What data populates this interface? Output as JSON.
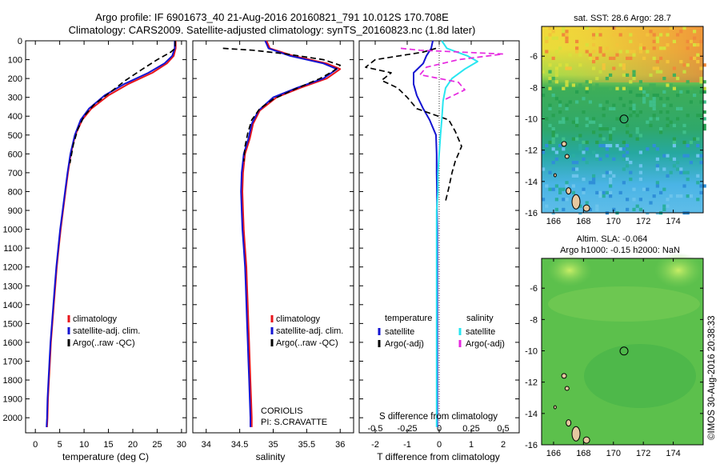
{
  "header": {
    "line1": "Argo profile: IF 6901673_40 21-Aug-2016 20160821_791 10.012S 170.708E",
    "line2": "Climatology: CARS2009. Satellite-adjusted climatology: synTS_20160823.nc (1.8d later)"
  },
  "footer": {
    "stamp": "©IMOS 30-Aug-2016 20:38:33"
  },
  "colors": {
    "climatology": "#e8151b",
    "satellite": "#1414d2",
    "argo": "#000000",
    "sal_satellite": "#28e6f0",
    "sal_argo": "#e629e0"
  },
  "chart_data": [
    {
      "type": "line",
      "xlabel": "temperature (deg C)",
      "xlim": [
        -2,
        31
      ],
      "ylim": [
        2080,
        0
      ],
      "xticks": [
        0,
        5,
        10,
        15,
        20,
        25,
        30
      ],
      "yticks": [
        0,
        100,
        200,
        300,
        400,
        500,
        600,
        700,
        800,
        900,
        1000,
        1100,
        1200,
        1300,
        1400,
        1500,
        1600,
        1700,
        1800,
        1900,
        2000
      ],
      "legend": {
        "placement": "lower-left",
        "entries": [
          "climatology",
          "satellite-adj. clim.",
          "Argo(..raw -QC)"
        ]
      },
      "series": [
        {
          "name": "climatology",
          "color": "#e8151b",
          "dash": "solid",
          "points": [
            [
              28.8,
              0
            ],
            [
              28.8,
              40
            ],
            [
              28.4,
              80
            ],
            [
              27,
              120
            ],
            [
              24,
              170
            ],
            [
              19,
              230
            ],
            [
              15,
              290
            ],
            [
              11.5,
              360
            ],
            [
              9.6,
              420
            ],
            [
              8.2,
              500
            ],
            [
              7.3,
              600
            ],
            [
              6.7,
              700
            ],
            [
              6.2,
              800
            ],
            [
              5.7,
              900
            ],
            [
              5.2,
              1000
            ],
            [
              4.8,
              1100
            ],
            [
              4.4,
              1200
            ],
            [
              4.1,
              1300
            ],
            [
              3.8,
              1400
            ],
            [
              3.5,
              1500
            ],
            [
              3.2,
              1600
            ],
            [
              3.0,
              1700
            ],
            [
              2.8,
              1800
            ],
            [
              2.6,
              1900
            ],
            [
              2.5,
              2000
            ],
            [
              2.4,
              2050
            ]
          ]
        },
        {
          "name": "satellite-adj. clim.",
          "color": "#1414d2",
          "dash": "solid",
          "points": [
            [
              28.6,
              0
            ],
            [
              28.6,
              40
            ],
            [
              28.1,
              80
            ],
            [
              26.5,
              120
            ],
            [
              23.2,
              170
            ],
            [
              18.2,
              230
            ],
            [
              14.2,
              290
            ],
            [
              11,
              360
            ],
            [
              9.3,
              420
            ],
            [
              8.1,
              500
            ],
            [
              7.2,
              600
            ],
            [
              6.6,
              700
            ],
            [
              6.1,
              800
            ],
            [
              5.6,
              900
            ],
            [
              5.1,
              1000
            ],
            [
              4.7,
              1100
            ],
            [
              4.3,
              1200
            ],
            [
              4.0,
              1300
            ],
            [
              3.7,
              1400
            ],
            [
              3.4,
              1500
            ],
            [
              3.1,
              1600
            ],
            [
              2.9,
              1700
            ],
            [
              2.7,
              1800
            ],
            [
              2.5,
              1900
            ],
            [
              2.4,
              2000
            ],
            [
              2.3,
              2050
            ]
          ]
        },
        {
          "name": "Argo(..raw -QC)",
          "color": "#000000",
          "dash": "dash",
          "points": [
            [
              28.7,
              0
            ],
            [
              28.7,
              40
            ],
            [
              27.8,
              60
            ],
            [
              25,
              100
            ],
            [
              22,
              150
            ],
            [
              18.5,
              210
            ],
            [
              15,
              280
            ],
            [
              12,
              340
            ],
            [
              10,
              400
            ],
            [
              8.7,
              470
            ],
            [
              7.8,
              550
            ],
            [
              7.1,
              650
            ]
          ]
        }
      ]
    },
    {
      "type": "line",
      "xlabel": "salinity",
      "xlim": [
        33.8,
        36.2
      ],
      "ylim": [
        2080,
        0
      ],
      "xticks": [
        34,
        34.5,
        35,
        35.5,
        36
      ],
      "legend": {
        "placement": "lower-left",
        "entries": [
          "climatology",
          "satellite-adj. clim.",
          "Argo(..raw -QC)"
        ]
      },
      "annotation": {
        "line1": "CORIOLIS",
        "line2": "PI: S.CRAVATTE"
      },
      "series": [
        {
          "name": "climatology",
          "color": "#e8151b",
          "dash": "solid",
          "points": [
            [
              34.9,
              0
            ],
            [
              34.95,
              40
            ],
            [
              35.3,
              80
            ],
            [
              35.8,
              120
            ],
            [
              36.0,
              150
            ],
            [
              35.8,
              200
            ],
            [
              35.4,
              250
            ],
            [
              35.05,
              300
            ],
            [
              34.8,
              370
            ],
            [
              34.7,
              440
            ],
            [
              34.65,
              520
            ],
            [
              34.58,
              600
            ],
            [
              34.55,
              700
            ],
            [
              34.54,
              800
            ],
            [
              34.55,
              900
            ],
            [
              34.56,
              1000
            ],
            [
              34.58,
              1100
            ],
            [
              34.6,
              1200
            ],
            [
              34.61,
              1300
            ],
            [
              34.62,
              1400
            ],
            [
              34.63,
              1500
            ],
            [
              34.64,
              1600
            ],
            [
              34.65,
              1700
            ],
            [
              34.66,
              1800
            ],
            [
              34.67,
              1900
            ],
            [
              34.68,
              2000
            ],
            [
              34.68,
              2050
            ]
          ]
        },
        {
          "name": "satellite-adj. clim.",
          "color": "#1414d2",
          "dash": "solid",
          "points": [
            [
              34.88,
              0
            ],
            [
              34.93,
              40
            ],
            [
              35.25,
              80
            ],
            [
              35.75,
              120
            ],
            [
              35.95,
              150
            ],
            [
              35.75,
              200
            ],
            [
              35.35,
              250
            ],
            [
              35.0,
              300
            ],
            [
              34.78,
              370
            ],
            [
              34.68,
              440
            ],
            [
              34.63,
              520
            ],
            [
              34.56,
              600
            ],
            [
              34.53,
              700
            ],
            [
              34.52,
              800
            ],
            [
              34.53,
              900
            ],
            [
              34.54,
              1000
            ],
            [
              34.56,
              1100
            ],
            [
              34.58,
              1200
            ],
            [
              34.59,
              1300
            ],
            [
              34.6,
              1400
            ],
            [
              34.61,
              1500
            ],
            [
              34.62,
              1600
            ],
            [
              34.63,
              1700
            ],
            [
              34.64,
              1800
            ],
            [
              34.65,
              1900
            ],
            [
              34.66,
              2000
            ],
            [
              34.66,
              2050
            ]
          ]
        },
        {
          "name": "Argo(..raw -QC)",
          "color": "#000000",
          "dash": "dash",
          "points": [
            [
              34.25,
              40
            ],
            [
              34.7,
              50
            ],
            [
              35.2,
              70
            ],
            [
              35.75,
              100
            ],
            [
              36.0,
              130
            ],
            [
              35.9,
              160
            ],
            [
              35.7,
              200
            ],
            [
              35.3,
              260
            ],
            [
              35.0,
              310
            ],
            [
              34.8,
              360
            ],
            [
              34.68,
              420
            ],
            [
              34.62,
              490
            ],
            [
              34.58,
              560
            ],
            [
              34.56,
              640
            ]
          ]
        }
      ]
    },
    {
      "type": "line",
      "xlabel_bottom": "T difference from climatology",
      "xlabel_top": "S difference from climatology",
      "xlim": [
        -2.5,
        2.5
      ],
      "ylim": [
        2080,
        0
      ],
      "xticks_T": [
        -2,
        -1,
        0,
        1,
        2
      ],
      "xticks_S": [
        -0.5,
        -0.25,
        0,
        0.25,
        0.5
      ],
      "legend": {
        "placement": "lower",
        "temperature_title": "temperature",
        "salinity_title": "salinity",
        "temperature_entries": [
          "satellite",
          "Argo(-adj)"
        ],
        "salinity_entries": [
          "satellite",
          "Argo(-adj)"
        ]
      },
      "series": [
        {
          "name": "satellite",
          "group": "temperature",
          "color": "#1414d2",
          "dash": "solid",
          "points": [
            [
              -0.2,
              0
            ],
            [
              -0.25,
              40
            ],
            [
              -0.4,
              80
            ],
            [
              -0.5,
              120
            ],
            [
              -0.8,
              170
            ],
            [
              -0.8,
              230
            ],
            [
              -0.7,
              290
            ],
            [
              -0.5,
              360
            ],
            [
              -0.3,
              420
            ],
            [
              -0.1,
              500
            ],
            [
              -0.08,
              600
            ],
            [
              -0.08,
              700
            ],
            [
              -0.07,
              800
            ],
            [
              -0.07,
              900
            ],
            [
              -0.06,
              1000
            ],
            [
              -0.06,
              1100
            ],
            [
              -0.06,
              1200
            ],
            [
              -0.06,
              1300
            ],
            [
              -0.06,
              1400
            ],
            [
              -0.06,
              1500
            ],
            [
              -0.06,
              1600
            ],
            [
              -0.06,
              1700
            ],
            [
              -0.06,
              1800
            ],
            [
              -0.06,
              1900
            ],
            [
              -0.06,
              2000
            ],
            [
              -0.06,
              2050
            ]
          ]
        },
        {
          "name": "Argo(-adj)",
          "group": "temperature",
          "color": "#000000",
          "dash": "dash",
          "points": [
            [
              -0.1,
              40
            ],
            [
              -0.5,
              60
            ],
            [
              -2.0,
              100
            ],
            [
              -2.3,
              140
            ],
            [
              -1.5,
              170
            ],
            [
              -1.8,
              210
            ],
            [
              -1.3,
              250
            ],
            [
              -1.0,
              300
            ],
            [
              -0.7,
              360
            ],
            [
              0.3,
              420
            ],
            [
              0.5,
              480
            ],
            [
              0.7,
              560
            ],
            [
              0.5,
              640
            ],
            [
              0.4,
              700
            ],
            [
              0.3,
              780
            ],
            [
              0.2,
              850
            ]
          ]
        },
        {
          "name": "satellite",
          "group": "salinity",
          "color": "#28e6f0",
          "dash": "solid",
          "points": [
            [
              0.02,
              0
            ],
            [
              0.06,
              40
            ],
            [
              0.22,
              80
            ],
            [
              0.3,
              110
            ],
            [
              0.2,
              150
            ],
            [
              0.1,
              200
            ],
            [
              0.05,
              250
            ],
            [
              0.03,
              320
            ],
            [
              0.02,
              420
            ],
            [
              0.01,
              500
            ],
            [
              0.0,
              600
            ],
            [
              -0.01,
              700
            ],
            [
              -0.01,
              800
            ],
            [
              -0.02,
              900
            ],
            [
              -0.02,
              1000
            ],
            [
              -0.02,
              1100
            ],
            [
              -0.02,
              1200
            ],
            [
              -0.02,
              1300
            ],
            [
              -0.02,
              1400
            ],
            [
              -0.02,
              1500
            ],
            [
              -0.02,
              1600
            ],
            [
              -0.02,
              1700
            ],
            [
              -0.02,
              1800
            ],
            [
              -0.02,
              1900
            ],
            [
              -0.02,
              2000
            ],
            [
              -0.02,
              2050
            ]
          ]
        },
        {
          "name": "Argo(-adj)",
          "group": "salinity",
          "color": "#e629e0",
          "dash": "dash",
          "points": [
            [
              -0.3,
              40
            ],
            [
              -0.15,
              50
            ],
            [
              0.5,
              70
            ],
            [
              0.15,
              100
            ],
            [
              -0.1,
              140
            ],
            [
              -0.15,
              180
            ],
            [
              0.15,
              220
            ],
            [
              0.2,
              260
            ],
            [
              0.05,
              310
            ]
          ]
        }
      ]
    },
    {
      "type": "heatmap",
      "title": "sat. SST: 28.6  Argo: 28.7",
      "xlim": [
        165.2,
        176
      ],
      "ylim": [
        -16,
        -4.1
      ],
      "xticks": [
        166,
        168,
        170,
        172,
        174
      ],
      "yticks": [
        -6,
        -8,
        -10,
        -12,
        -14,
        -16
      ],
      "marker": {
        "lon": 170.708,
        "lat": -10.012
      }
    },
    {
      "type": "heatmap",
      "title": "Altim. SLA: -0.064",
      "subtitle": "Argo h1000: -0.15 h2000: NaN",
      "xlim": [
        165.2,
        176
      ],
      "ylim": [
        -16,
        -4.1
      ],
      "xticks": [
        166,
        168,
        170,
        172,
        174
      ],
      "yticks": [
        -6,
        -8,
        -10,
        -12,
        -14,
        -16
      ],
      "marker": {
        "lon": 170.708,
        "lat": -10.012
      }
    }
  ]
}
